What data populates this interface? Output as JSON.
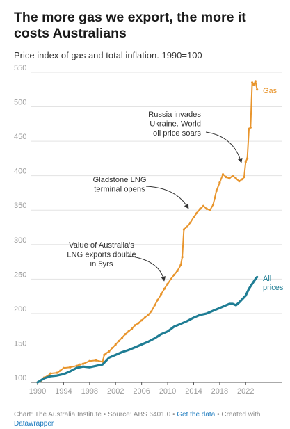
{
  "header": {
    "title": "The more gas we export, the more it costs Australians",
    "subtitle": "Price index of gas and total inflation. 1990=100"
  },
  "footer": {
    "chart_credit": "Chart: The Australia Institute",
    "source": "Source: ABS 6401.0",
    "get_data_link": "Get the data",
    "created_with": "Created with",
    "tool_link": "Datawrapper",
    "separator": "•"
  },
  "chart_data": {
    "type": "line",
    "title": "The more gas we export, the more it costs Australians",
    "subtitle": "Price index of gas and total inflation. 1990=100",
    "xlim": [
      1990,
      2024
    ],
    "ylim": [
      100,
      550
    ],
    "x_ticks": [
      1990,
      1994,
      1998,
      2002,
      2006,
      2010,
      2014,
      2018,
      2022
    ],
    "y_ticks": [
      100,
      150,
      200,
      250,
      300,
      350,
      400,
      450,
      500,
      550
    ],
    "grid": true,
    "legend": "direct labels at line ends",
    "colors": {
      "gas": "#e8952d",
      "all_prices": "#1f7d94",
      "link": "#1d7bbf"
    },
    "series": [
      {
        "name": "Gas",
        "color": "#e8952d",
        "x": [
          1990,
          1990.5,
          1991,
          1991.5,
          1992,
          1993,
          1993.5,
          1994,
          1995,
          1996,
          1996.5,
          1997,
          1998,
          1999,
          2000,
          2000.25,
          2000.5,
          2001,
          2001.5,
          2002,
          2002.5,
          2003,
          2003.5,
          2004,
          2004.5,
          2005,
          2005.5,
          2006,
          2006.5,
          2007,
          2007.5,
          2008,
          2008.5,
          2009,
          2009.5,
          2010,
          2010.5,
          2011,
          2011.5,
          2012,
          2012.25,
          2012.5,
          2013,
          2013.5,
          2014,
          2014.5,
          2015,
          2015.5,
          2016,
          2016.5,
          2017,
          2017.25,
          2017.5,
          2018,
          2018.5,
          2019,
          2019.5,
          2020,
          2020.5,
          2021,
          2021.5,
          2021.75,
          2022,
          2022.25,
          2022.5,
          2022.75,
          2023,
          2023.25,
          2023.5,
          2023.75
        ],
        "values": [
          100,
          102,
          107,
          109,
          113,
          114,
          117,
          121,
          122,
          124,
          126,
          127,
          131,
          132,
          130,
          140,
          142,
          145,
          150,
          155,
          160,
          165,
          170,
          174,
          178,
          183,
          186,
          190,
          194,
          198,
          203,
          212,
          220,
          228,
          236,
          243,
          250,
          256,
          262,
          270,
          282,
          322,
          326,
          332,
          340,
          346,
          352,
          356,
          352,
          350,
          358,
          368,
          378,
          390,
          402,
          398,
          396,
          400,
          396,
          392,
          395,
          398,
          420,
          425,
          468,
          470,
          535,
          532,
          537,
          525
        ]
      },
      {
        "name": "All prices",
        "color": "#1f7d94",
        "x": [
          1990,
          1991,
          1992,
          1993,
          1994,
          1995,
          1996,
          1997,
          1998,
          1999,
          2000,
          2000.5,
          2001,
          2002,
          2003,
          2004,
          2005,
          2006,
          2007,
          2008,
          2009,
          2010,
          2011,
          2012,
          2013,
          2014,
          2015,
          2016,
          2017,
          2018,
          2019,
          2019.5,
          2020,
          2020.5,
          2021,
          2022,
          2022.5,
          2023,
          2023.5,
          2023.75
        ],
        "values": [
          100,
          106,
          109,
          110,
          112,
          116,
          121,
          123,
          122,
          124,
          126,
          131,
          136,
          140,
          144,
          147,
          151,
          155,
          159,
          164,
          170,
          174,
          181,
          185,
          189,
          194,
          198,
          200,
          204,
          208,
          212,
          214,
          214,
          212,
          216,
          226,
          236,
          243,
          250,
          253
        ]
      }
    ],
    "series_labels": {
      "gas": "Gas",
      "all_prices_line1": "All",
      "all_prices_line2": "prices"
    },
    "annotations": [
      {
        "lines": [
          "Russia invades",
          "Ukraine. World",
          "oil price soars"
        ],
        "target_x": 2022,
        "target_y": 403
      },
      {
        "lines": [
          "Gladstone LNG",
          "terminal opens"
        ],
        "target_x": 2013.3,
        "target_y": 330
      },
      {
        "lines": [
          "Value of Australia's",
          "LNG exports double",
          "in 5yrs"
        ],
        "target_x": 2009.5,
        "target_y": 245
      }
    ]
  }
}
